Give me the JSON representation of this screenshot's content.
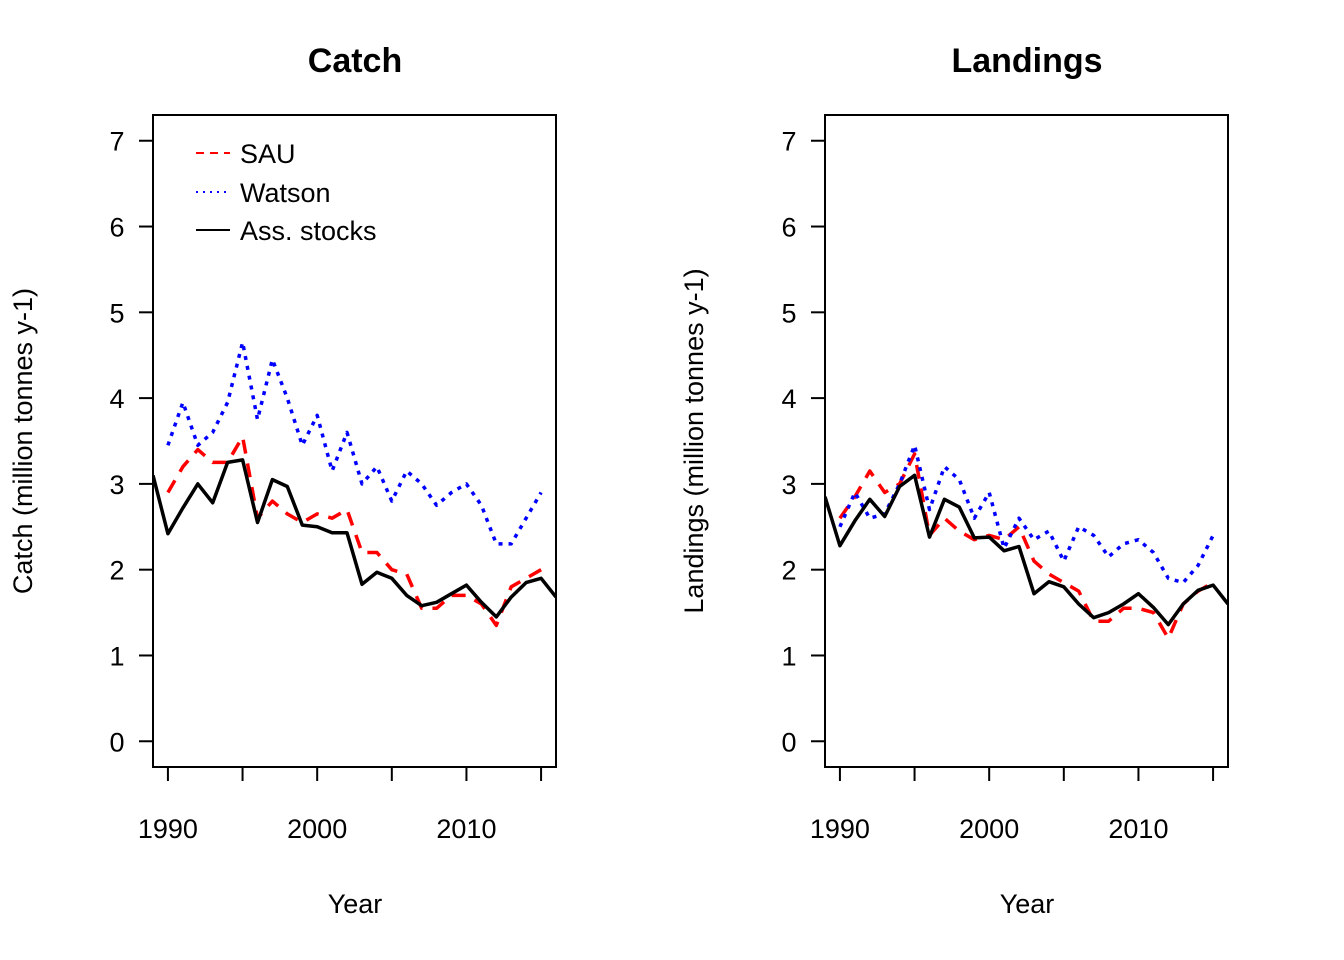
{
  "chart_data": [
    {
      "type": "line",
      "title": "Catch",
      "xlabel": "Year",
      "ylabel": "Catch (million tonnes y-1)",
      "xlim": [
        1989,
        2016
      ],
      "ylim": [
        -0.3,
        7.3
      ],
      "xticks": [
        1990,
        1995,
        2000,
        2005,
        2010,
        2015
      ],
      "xtick_labels": [
        "1990",
        "",
        "2000",
        "",
        "2010",
        ""
      ],
      "yticks": [
        0,
        1,
        2,
        3,
        4,
        5,
        6,
        7
      ],
      "ytick_labels": [
        "0",
        "1",
        "2",
        "3",
        "4",
        "5",
        "6",
        "7"
      ],
      "legend": "top-left",
      "series": [
        {
          "name": "SAU",
          "color": "#FF0000",
          "style": "dashed",
          "x": [
            1990,
            1991,
            1992,
            1993,
            1994,
            1995,
            1996,
            1997,
            1998,
            1999,
            2000,
            2001,
            2002,
            2003,
            2004,
            2005,
            2006,
            2007,
            2008,
            2009,
            2010,
            2011,
            2012,
            2013,
            2014,
            2015
          ],
          "values": [
            2.9,
            3.2,
            3.4,
            3.25,
            3.25,
            3.55,
            2.6,
            2.8,
            2.65,
            2.55,
            2.65,
            2.6,
            2.7,
            2.2,
            2.2,
            2.0,
            1.95,
            1.55,
            1.55,
            1.7,
            1.7,
            1.6,
            1.35,
            1.8,
            1.9,
            2.0
          ]
        },
        {
          "name": "Watson",
          "color": "#0000FF",
          "style": "dotted",
          "x": [
            1990,
            1991,
            1992,
            1993,
            1994,
            1995,
            1996,
            1997,
            1998,
            1999,
            2000,
            2001,
            2002,
            2003,
            2004,
            2005,
            2006,
            2007,
            2008,
            2009,
            2010,
            2011,
            2012,
            2013,
            2014,
            2015
          ],
          "values": [
            3.45,
            3.95,
            3.45,
            3.6,
            3.95,
            4.65,
            3.75,
            4.45,
            4.0,
            3.45,
            3.8,
            3.15,
            3.6,
            3.0,
            3.2,
            2.8,
            3.15,
            3.0,
            2.75,
            2.9,
            3.0,
            2.75,
            2.3,
            2.3,
            2.6,
            2.9
          ]
        },
        {
          "name": "Ass. stocks",
          "color": "#000000",
          "style": "solid",
          "x": [
            1989,
            1990,
            1991,
            1992,
            1993,
            1994,
            1995,
            1996,
            1997,
            1998,
            1999,
            2000,
            2001,
            2002,
            2003,
            2004,
            2005,
            2006,
            2007,
            2008,
            2009,
            2010,
            2011,
            2012,
            2013,
            2014,
            2015,
            2016
          ],
          "values": [
            3.1,
            2.42,
            2.72,
            3.0,
            2.78,
            3.25,
            3.28,
            2.55,
            3.05,
            2.97,
            2.52,
            2.5,
            2.43,
            2.43,
            1.83,
            1.97,
            1.9,
            1.7,
            1.58,
            1.62,
            1.72,
            1.82,
            1.62,
            1.45,
            1.68,
            1.85,
            1.9,
            1.68
          ]
        }
      ]
    },
    {
      "type": "line",
      "title": "Landings",
      "xlabel": "Year",
      "ylabel": "Landings (million tonnes y-1)",
      "xlim": [
        1989,
        2016
      ],
      "ylim": [
        -0.3,
        7.3
      ],
      "xticks": [
        1990,
        1995,
        2000,
        2005,
        2010,
        2015
      ],
      "xtick_labels": [
        "1990",
        "",
        "2000",
        "",
        "2010",
        ""
      ],
      "yticks": [
        0,
        1,
        2,
        3,
        4,
        5,
        6,
        7
      ],
      "ytick_labels": [
        "0",
        "1",
        "2",
        "3",
        "4",
        "5",
        "6",
        "7"
      ],
      "series": [
        {
          "color": "#FF0000",
          "style": "dashed",
          "x": [
            1990,
            1991,
            1992,
            1993,
            1994,
            1995,
            1996,
            1997,
            1998,
            1999,
            2000,
            2001,
            2002,
            2003,
            2004,
            2005,
            2006,
            2007,
            2008,
            2009,
            2010,
            2011,
            2012,
            2013,
            2014,
            2015
          ],
          "values": [
            2.6,
            2.85,
            3.15,
            2.9,
            3.0,
            3.35,
            2.4,
            2.6,
            2.45,
            2.35,
            2.4,
            2.35,
            2.5,
            2.1,
            1.95,
            1.85,
            1.75,
            1.4,
            1.4,
            1.55,
            1.55,
            1.5,
            1.2,
            1.6,
            1.75,
            1.85
          ]
        },
        {
          "color": "#0000FF",
          "style": "dotted",
          "x": [
            1990,
            1991,
            1992,
            1993,
            1994,
            1995,
            1996,
            1997,
            1998,
            1999,
            2000,
            2001,
            2002,
            2003,
            2004,
            2005,
            2006,
            2007,
            2008,
            2009,
            2010,
            2011,
            2012,
            2013,
            2014,
            2015
          ],
          "values": [
            2.5,
            2.9,
            2.6,
            2.65,
            3.0,
            3.45,
            2.7,
            3.2,
            3.05,
            2.6,
            2.9,
            2.25,
            2.6,
            2.35,
            2.45,
            2.1,
            2.5,
            2.4,
            2.15,
            2.3,
            2.35,
            2.2,
            1.9,
            1.85,
            2.05,
            2.4
          ]
        },
        {
          "color": "#000000",
          "style": "solid",
          "x": [
            1989,
            1990,
            1991,
            1992,
            1993,
            1994,
            1995,
            1996,
            1997,
            1998,
            1999,
            2000,
            2001,
            2002,
            2003,
            2004,
            2005,
            2006,
            2007,
            2008,
            2009,
            2010,
            2011,
            2012,
            2013,
            2014,
            2015,
            2016
          ],
          "values": [
            2.85,
            2.28,
            2.57,
            2.82,
            2.62,
            2.97,
            3.1,
            2.38,
            2.82,
            2.73,
            2.37,
            2.38,
            2.22,
            2.27,
            1.72,
            1.86,
            1.8,
            1.6,
            1.44,
            1.5,
            1.6,
            1.72,
            1.56,
            1.36,
            1.6,
            1.76,
            1.82,
            1.6
          ]
        }
      ]
    }
  ]
}
